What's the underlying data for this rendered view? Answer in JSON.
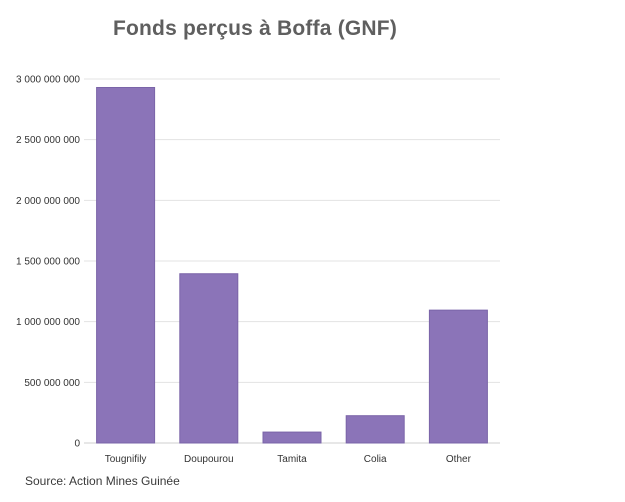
{
  "chart_data": {
    "type": "bar",
    "title": "Fonds perçus à Boffa (GNF)",
    "xlabel": "",
    "ylabel": "",
    "categories": [
      "Tougnifily",
      "Doupourou",
      "Tamita",
      "Colia",
      "Other"
    ],
    "values": [
      2930000000,
      1395000000,
      90000000,
      225000000,
      1095000000
    ],
    "ylim": [
      0,
      3000000000
    ],
    "yticks": [
      0,
      500000000,
      1000000000,
      1500000000,
      2000000000,
      2500000000,
      3000000000
    ],
    "ytick_labels": [
      "0",
      "500 000 000",
      "1 000 000 000",
      "1 500 000 000",
      "2 000 000 000",
      "2 500 000 000",
      "3 000 000 000"
    ],
    "grid": true,
    "bar_color": "#8b74b8",
    "bar_edge_color": "#7a64a8",
    "grid_color": "#e3e3e3"
  },
  "source": "Source: Action Mines Guinée"
}
